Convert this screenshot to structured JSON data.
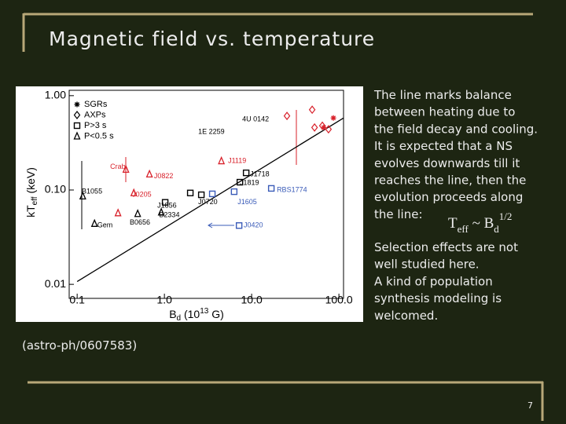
{
  "slide": {
    "title": "Magnetic field vs. temperature",
    "text_lines": [
      "The line marks balance",
      "between heating due to",
      "the field decay and cooling.",
      "It is expected that a NS",
      "evolves downwards till it",
      "reaches the line, then the",
      "evolution proceeds along",
      "the line:"
    ],
    "formula": {
      "t": "T",
      "t_sub": "eff",
      "mid": " ~ B",
      "b_sub": "d",
      "sup": "1/2"
    },
    "text_lines_2": [
      "Selection effects are not",
      "well studied here.",
      "A kind of population",
      "synthesis modeling is",
      "welcomed."
    ],
    "reference": "(astro-ph/0607583)",
    "page_number": "7"
  },
  "chart_data": {
    "type": "scatter",
    "xlog": true,
    "ylog": true,
    "xlim": [
      0.081,
      113
    ],
    "ylim": [
      0.0071,
      1.14
    ],
    "xticks": [
      {
        "value": 0.1,
        "label": "0.1"
      },
      {
        "value": 1,
        "label": "1.0"
      },
      {
        "value": 10,
        "label": "10.0"
      },
      {
        "value": 100,
        "label": "100.0"
      }
    ],
    "yticks": [
      {
        "value": 0.01,
        "label": "0.01"
      },
      {
        "value": 0.1,
        "label": "0.10"
      },
      {
        "value": 1,
        "label": "1.00"
      }
    ],
    "x_label": {
      "main": "B",
      "sub": "d",
      "pre": " (10",
      "sup": "13",
      "post": " G)"
    },
    "y_label": {
      "main": "kT",
      "sub": "eff",
      "post": " (keV)"
    },
    "legend": "upper left",
    "balance_line": {
      "x": [
        0.1,
        113
      ],
      "y": [
        0.0107,
        0.58
      ]
    },
    "series": [
      {
        "name": "SGRs",
        "marker": "asterisk",
        "color": "#000000",
        "x": [
          86.5,
          67
        ],
        "y": [
          0.58,
          0.46
        ],
        "colors": [
          "#d8202a",
          "#d8202a"
        ]
      },
      {
        "name": "AXPs",
        "marker": "diamond",
        "color": "#000000",
        "x": [
          25.4,
          49.4,
          52.6,
          64.6,
          76
        ],
        "y": [
          0.61,
          0.71,
          0.46,
          0.48,
          0.44
        ],
        "colors": [
          "#d8202a",
          "#d8202a",
          "#d8202a",
          "#d8202a",
          "#d8202a"
        ]
      },
      {
        "name": "P>3 s",
        "marker": "square",
        "color": "#000000",
        "x": [
          8.65,
          7.33,
          2.65,
          1.02,
          1.98,
          16.8,
          6.3,
          3.54,
          7.18
        ],
        "y": [
          0.152,
          0.121,
          0.089,
          0.074,
          0.093,
          0.104,
          0.096,
          0.091,
          0.042
        ],
        "colors": [
          "#000000",
          "#000000",
          "#000000",
          "#000000",
          "#000000",
          "#3a5bb8",
          "#3a5bb8",
          "#3a5bb8",
          "#3a5bb8"
        ]
      },
      {
        "name": "P<0.5 s",
        "marker": "triangle",
        "color": "#000000",
        "x": [
          4.5,
          0.362,
          0.674,
          0.446,
          0.294,
          0.494,
          0.116,
          0.158,
          0.92
        ],
        "y": [
          0.203,
          0.165,
          0.147,
          0.093,
          0.057,
          0.056,
          0.086,
          0.044,
          0.058
        ],
        "colors": [
          "#d8202a",
          "#d8202a",
          "#d8202a",
          "#d8202a",
          "#d8202a",
          "#000000",
          "#000000",
          "#000000",
          "#000000"
        ]
      }
    ],
    "annotations": [
      {
        "text": "4U 0142",
        "x": 7.8,
        "y": 0.56,
        "color": "#000000"
      },
      {
        "text": "1E 2259",
        "x": 2.44,
        "y": 0.41,
        "color": "#000000"
      },
      {
        "text": "J1119",
        "x": 5.36,
        "y": 0.203,
        "color": "#d8202a"
      },
      {
        "text": "J1718",
        "x": 9.6,
        "y": 0.147,
        "color": "#000000"
      },
      {
        "text": "J1819",
        "x": 7.3,
        "y": 0.119,
        "color": "#000000"
      },
      {
        "text": "RBS1774",
        "x": 19.4,
        "y": 0.1,
        "color": "#3a5bb8"
      },
      {
        "text": "J1605",
        "x": 6.9,
        "y": 0.074,
        "color": "#3a5bb8"
      },
      {
        "text": "J0720",
        "x": 2.44,
        "y": 0.074,
        "color": "#000000"
      },
      {
        "text": "J1856",
        "x": 0.83,
        "y": 0.068,
        "color": "#000000"
      },
      {
        "text": "B2334",
        "x": 0.87,
        "y": 0.054,
        "color": "#000000"
      },
      {
        "text": "J0420",
        "x": 8.1,
        "y": 0.042,
        "color": "#3a5bb8"
      },
      {
        "text": "Crab",
        "x": 0.239,
        "y": 0.175,
        "color": "#d8202a"
      },
      {
        "text": "J0822",
        "x": 0.76,
        "y": 0.139,
        "color": "#d8202a"
      },
      {
        "text": "J0205",
        "x": 0.427,
        "y": 0.089,
        "color": "#d8202a"
      },
      {
        "text": "B0656",
        "x": 0.4,
        "y": 0.045,
        "color": "#000000"
      },
      {
        "text": "B1055",
        "x": 0.113,
        "y": 0.096,
        "color": "#000000"
      },
      {
        "text": "Gem",
        "x": 0.17,
        "y": 0.042,
        "color": "#000000"
      }
    ]
  }
}
